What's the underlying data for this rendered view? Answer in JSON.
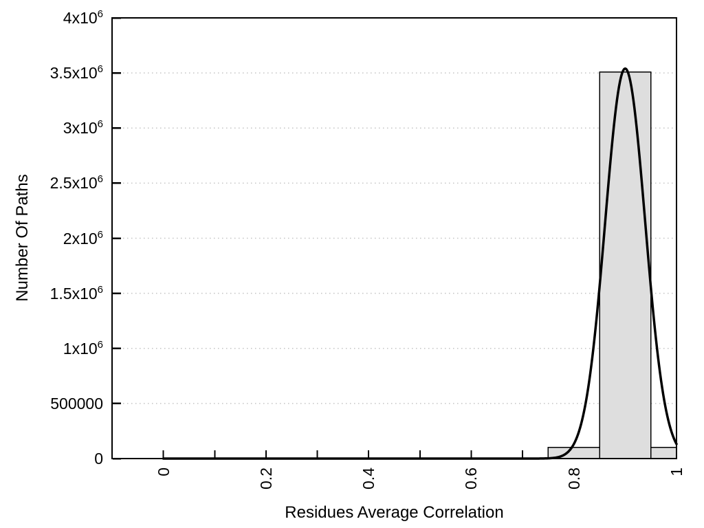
{
  "chart_data": {
    "type": "histogram",
    "title": "",
    "xlabel": "Residues Average Correlation",
    "ylabel": "Number Of Paths",
    "xlim": [
      -0.1,
      1.0
    ],
    "ylim": [
      0,
      4000000
    ],
    "x_axis": {
      "minor_tick_step": 0.1,
      "tick_values": [
        0,
        0.2,
        0.4,
        0.6,
        0.8,
        1
      ],
      "tick_labels": [
        "0",
        "0.2",
        "0.4",
        "0.6",
        "0.8",
        "1"
      ],
      "tick_label_rotation_deg": -90
    },
    "y_axis": {
      "tick_values": [
        0,
        500000,
        1000000,
        1500000,
        2000000,
        2500000,
        3000000,
        3500000,
        4000000
      ],
      "tick_labels": [
        {
          "base": "0",
          "exp": ""
        },
        {
          "base": "500000",
          "exp": ""
        },
        {
          "base": "1x10",
          "exp": "6"
        },
        {
          "base": "1.5x10",
          "exp": "6"
        },
        {
          "base": "2x10",
          "exp": "6"
        },
        {
          "base": "2.5x10",
          "exp": "6"
        },
        {
          "base": "3x10",
          "exp": "6"
        },
        {
          "base": "3.5x10",
          "exp": "6"
        },
        {
          "base": "4x10",
          "exp": "6"
        }
      ]
    },
    "grid": {
      "horizontal_dotted": true,
      "vertical": false
    },
    "histogram_bins": [
      {
        "bin_start": 0.75,
        "bin_end": 0.85,
        "count": 100000
      },
      {
        "bin_start": 0.85,
        "bin_end": 0.95,
        "count": 3510000
      },
      {
        "bin_start": 0.95,
        "bin_end": 1.0,
        "count": 100000
      }
    ],
    "bins_elsewhere_count": 0,
    "fit_curve": {
      "shape": "gaussian",
      "mean": 0.9,
      "sigma": 0.039,
      "peak": 3540000,
      "x_start": 0.0,
      "x_end": 1.0
    },
    "colors": {
      "background": "#ffffff",
      "bar_fill": "#dedede",
      "bar_border": "#000000",
      "curve": "#000000",
      "grid": "#c3c3c3",
      "axis": "#000000",
      "text": "#000000"
    }
  }
}
